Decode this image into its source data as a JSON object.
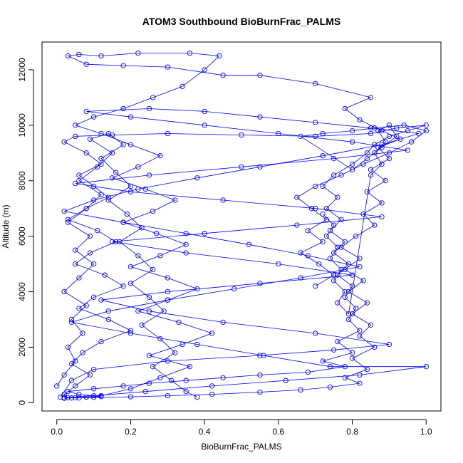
{
  "chart_data": {
    "type": "scatter",
    "title": "ATOM3 Southbound BioBurnFrac_PALMS",
    "xlabel": "BioBurnFrac_PALMS",
    "ylabel": "Altitude (m)",
    "xlim": [
      -0.04,
      1.04
    ],
    "ylim": [
      -300,
      13000
    ],
    "x_ticks": [
      "0.0",
      "0.2",
      "0.4",
      "0.6",
      "0.8",
      "1.0"
    ],
    "x_tick_values": [
      0.0,
      0.2,
      0.4,
      0.6,
      0.8,
      1.0
    ],
    "y_ticks": [
      "0",
      "2000",
      "4000",
      "6000",
      "8000",
      "10000",
      "12000"
    ],
    "y_tick_values": [
      0,
      2000,
      4000,
      6000,
      8000,
      10000,
      12000
    ],
    "grid": false,
    "marker": "open-circle",
    "connected": true,
    "colors": {
      "series": "#0000ff",
      "axes": "#000000"
    },
    "series": [
      {
        "points": [
          [
            0.02,
            160
          ],
          [
            0.05,
            180
          ],
          [
            0.08,
            200
          ],
          [
            0.12,
            220
          ],
          [
            0.06,
            300
          ],
          [
            0.03,
            400
          ],
          [
            0.1,
            500
          ],
          [
            0.18,
            600
          ],
          [
            0.25,
            700
          ],
          [
            0.35,
            800
          ],
          [
            0.45,
            900
          ],
          [
            0.55,
            1000
          ],
          [
            0.68,
            1100
          ],
          [
            0.78,
            1300
          ],
          [
            0.72,
            1500
          ],
          [
            0.8,
            1800
          ],
          [
            0.76,
            2200
          ],
          [
            0.82,
            2600
          ],
          [
            0.79,
            3000
          ],
          [
            0.81,
            3400
          ],
          [
            0.78,
            3800
          ],
          [
            0.8,
            4200
          ],
          [
            0.76,
            4600
          ],
          [
            0.79,
            5000
          ],
          [
            0.75,
            5400
          ],
          [
            0.78,
            5800
          ],
          [
            0.74,
            6200
          ],
          [
            0.77,
            6600
          ],
          [
            0.73,
            7000
          ],
          [
            0.76,
            7400
          ],
          [
            0.72,
            7800
          ],
          [
            0.75,
            8200
          ],
          [
            0.8,
            8600
          ],
          [
            0.84,
            9000
          ],
          [
            0.86,
            9300
          ],
          [
            0.9,
            9600
          ],
          [
            0.95,
            9800
          ],
          [
            1.0,
            10000
          ],
          [
            0.92,
            9900
          ],
          [
            0.85,
            9700
          ],
          [
            0.7,
            9600
          ],
          [
            0.5,
            9650
          ],
          [
            0.3,
            9700
          ],
          [
            0.15,
            9650
          ],
          [
            0.05,
            9600
          ],
          [
            0.02,
            9400
          ],
          [
            0.08,
            9000
          ],
          [
            0.12,
            8600
          ],
          [
            0.06,
            8200
          ],
          [
            0.1,
            7800
          ],
          [
            0.14,
            7400
          ],
          [
            0.08,
            7000
          ],
          [
            0.03,
            6600
          ],
          [
            0.11,
            6200
          ],
          [
            0.16,
            5800
          ],
          [
            0.09,
            5400
          ],
          [
            0.05,
            5000
          ],
          [
            0.13,
            4600
          ],
          [
            0.18,
            4200
          ],
          [
            0.1,
            3800
          ],
          [
            0.06,
            3400
          ],
          [
            0.14,
            3000
          ],
          [
            0.2,
            2600
          ],
          [
            0.12,
            2200
          ],
          [
            0.07,
            1800
          ],
          [
            0.04,
            1400
          ],
          [
            0.09,
            1000
          ],
          [
            0.05,
            600
          ],
          [
            0.02,
            300
          ],
          [
            0.03,
            180
          ]
        ]
      },
      {
        "points": [
          [
            0.04,
            170
          ],
          [
            0.1,
            190
          ],
          [
            0.2,
            210
          ],
          [
            0.3,
            250
          ],
          [
            0.42,
            300
          ],
          [
            0.55,
            380
          ],
          [
            0.66,
            460
          ],
          [
            0.74,
            560
          ],
          [
            0.82,
            700
          ],
          [
            0.78,
            900
          ],
          [
            0.84,
            1200
          ],
          [
            0.8,
            1600
          ],
          [
            0.86,
            2000
          ],
          [
            0.82,
            2400
          ],
          [
            0.85,
            2800
          ],
          [
            0.8,
            3200
          ],
          [
            0.84,
            3600
          ],
          [
            0.79,
            4000
          ],
          [
            0.83,
            4400
          ],
          [
            0.78,
            4800
          ],
          [
            0.82,
            5200
          ],
          [
            0.77,
            5600
          ],
          [
            0.81,
            6000
          ],
          [
            0.86,
            6400
          ],
          [
            0.83,
            6800
          ],
          [
            0.88,
            7200
          ],
          [
            0.84,
            7600
          ],
          [
            0.89,
            8000
          ],
          [
            0.85,
            8400
          ],
          [
            0.9,
            8800
          ],
          [
            0.87,
            9200
          ],
          [
            0.93,
            9500
          ],
          [
            0.88,
            9800
          ],
          [
            0.82,
            10200
          ],
          [
            0.78,
            10600
          ],
          [
            0.85,
            11000
          ],
          [
            0.7,
            11500
          ],
          [
            0.55,
            11800
          ],
          [
            0.45,
            11800
          ],
          [
            0.3,
            12100
          ],
          [
            0.18,
            12150
          ],
          [
            0.08,
            12200
          ],
          [
            0.03,
            12500
          ],
          [
            0.06,
            12550
          ],
          [
            0.12,
            12500
          ],
          [
            0.22,
            12600
          ],
          [
            0.36,
            12600
          ],
          [
            0.44,
            12500
          ],
          [
            0.4,
            12000
          ],
          [
            0.34,
            11400
          ],
          [
            0.26,
            11000
          ],
          [
            0.18,
            10600
          ],
          [
            0.1,
            10300
          ],
          [
            0.05,
            10000
          ],
          [
            0.12,
            9700
          ],
          [
            0.2,
            9300
          ],
          [
            0.28,
            8900
          ],
          [
            0.22,
            8500
          ],
          [
            0.15,
            8100
          ],
          [
            0.24,
            7700
          ],
          [
            0.32,
            7300
          ],
          [
            0.26,
            6900
          ],
          [
            0.18,
            6500
          ],
          [
            0.27,
            6100
          ],
          [
            0.35,
            5700
          ],
          [
            0.28,
            5300
          ],
          [
            0.2,
            4900
          ],
          [
            0.3,
            4500
          ],
          [
            0.38,
            4100
          ],
          [
            0.3,
            3700
          ],
          [
            0.22,
            3300
          ],
          [
            0.33,
            2900
          ],
          [
            0.42,
            2500
          ],
          [
            0.34,
            2100
          ],
          [
            0.25,
            1700
          ],
          [
            0.36,
            1300
          ],
          [
            0.28,
            900
          ],
          [
            0.2,
            500
          ],
          [
            0.12,
            250
          ],
          [
            0.06,
            170
          ]
        ]
      },
      {
        "points": [
          [
            0.01,
            200
          ],
          [
            0.04,
            800
          ],
          [
            0.1,
            1200
          ],
          [
            0.3,
            1500
          ],
          [
            0.55,
            1700
          ],
          [
            0.75,
            1900
          ],
          [
            0.9,
            2100
          ],
          [
            0.7,
            2500
          ],
          [
            0.45,
            2900
          ],
          [
            0.25,
            3300
          ],
          [
            0.12,
            3700
          ],
          [
            0.3,
            4000
          ],
          [
            0.55,
            4300
          ],
          [
            0.8,
            4600
          ],
          [
            0.6,
            5000
          ],
          [
            0.35,
            5400
          ],
          [
            0.15,
            5800
          ],
          [
            0.4,
            6100
          ],
          [
            0.65,
            6400
          ],
          [
            0.88,
            6700
          ],
          [
            0.7,
            7000
          ],
          [
            0.45,
            7300
          ],
          [
            0.2,
            7600
          ],
          [
            0.05,
            7900
          ],
          [
            0.25,
            8200
          ],
          [
            0.5,
            8500
          ],
          [
            0.75,
            8800
          ],
          [
            0.95,
            9100
          ],
          [
            0.8,
            9400
          ],
          [
            0.6,
            9700
          ],
          [
            0.4,
            10000
          ],
          [
            0.2,
            10300
          ],
          [
            0.08,
            10500
          ],
          [
            0.25,
            10600
          ],
          [
            0.4,
            10500
          ],
          [
            0.55,
            10300
          ],
          [
            0.7,
            10100
          ],
          [
            0.85,
            9900
          ],
          [
            0.98,
            9700
          ],
          [
            0.88,
            9300
          ],
          [
            0.72,
            8900
          ],
          [
            0.55,
            8500
          ],
          [
            0.38,
            8100
          ],
          [
            0.22,
            7700
          ],
          [
            0.1,
            7300
          ],
          [
            0.02,
            6900
          ],
          [
            0.18,
            6500
          ],
          [
            0.35,
            6100
          ],
          [
            0.52,
            5700
          ],
          [
            0.68,
            5300
          ],
          [
            0.82,
            4900
          ],
          [
            0.66,
            4500
          ],
          [
            0.48,
            4100
          ],
          [
            0.3,
            3700
          ],
          [
            0.14,
            3300
          ],
          [
            0.04,
            2900
          ],
          [
            0.2,
            2500
          ],
          [
            0.38,
            2100
          ],
          [
            0.56,
            1700
          ],
          [
            0.74,
            1300
          ],
          [
            1.0,
            1300
          ],
          [
            0.82,
            1000
          ],
          [
            0.62,
            800
          ],
          [
            0.42,
            600
          ],
          [
            0.24,
            400
          ],
          [
            0.1,
            250
          ],
          [
            0.02,
            180
          ]
        ]
      },
      {
        "points": [
          [
            0.0,
            600
          ],
          [
            0.02,
            1000
          ],
          [
            0.05,
            1500
          ],
          [
            0.03,
            2000
          ],
          [
            0.07,
            2500
          ],
          [
            0.04,
            3000
          ],
          [
            0.08,
            3500
          ],
          [
            0.02,
            4000
          ],
          [
            0.06,
            4500
          ],
          [
            0.1,
            5000
          ],
          [
            0.05,
            5500
          ],
          [
            0.09,
            6000
          ],
          [
            0.03,
            6500
          ],
          [
            0.08,
            7000
          ],
          [
            0.12,
            7500
          ],
          [
            0.06,
            8000
          ],
          [
            0.11,
            8500
          ],
          [
            0.15,
            9000
          ],
          [
            0.09,
            9500
          ],
          [
            0.14,
            9700
          ],
          [
            0.18,
            9300
          ],
          [
            0.12,
            8800
          ],
          [
            0.16,
            8300
          ],
          [
            0.2,
            7800
          ],
          [
            0.14,
            7300
          ],
          [
            0.19,
            6800
          ],
          [
            0.23,
            6300
          ],
          [
            0.17,
            5800
          ],
          [
            0.22,
            5300
          ],
          [
            0.26,
            4800
          ],
          [
            0.2,
            4300
          ],
          [
            0.25,
            3800
          ],
          [
            0.29,
            3300
          ],
          [
            0.23,
            2800
          ],
          [
            0.28,
            2300
          ],
          [
            0.32,
            1800
          ],
          [
            0.26,
            1300
          ],
          [
            0.31,
            800
          ],
          [
            0.35,
            400
          ],
          [
            0.38,
            200
          ]
        ]
      },
      {
        "points": [
          [
            0.72,
            6800
          ],
          [
            0.75,
            6400
          ],
          [
            0.73,
            6000
          ],
          [
            0.76,
            5600
          ],
          [
            0.74,
            5200
          ],
          [
            0.77,
            4800
          ],
          [
            0.75,
            4400
          ],
          [
            0.78,
            4000
          ],
          [
            0.76,
            3600
          ],
          [
            0.79,
            3200
          ],
          [
            0.85,
            8200
          ],
          [
            0.88,
            8600
          ],
          [
            0.86,
            9000
          ],
          [
            0.89,
            9400
          ],
          [
            0.87,
            9800
          ],
          [
            0.9,
            10000
          ],
          [
            0.92,
            9600
          ],
          [
            0.88,
            9200
          ],
          [
            0.84,
            8800
          ],
          [
            0.8,
            8400
          ],
          [
            0.66,
            9600
          ],
          [
            0.72,
            9700
          ],
          [
            0.8,
            9800
          ],
          [
            0.86,
            9900
          ],
          [
            0.94,
            10000
          ],
          [
            1.0,
            9800
          ],
          [
            0.96,
            9400
          ],
          [
            0.9,
            9000
          ],
          [
            0.83,
            8600
          ],
          [
            0.77,
            8200
          ],
          [
            0.7,
            7800
          ],
          [
            0.65,
            7400
          ],
          [
            0.69,
            7000
          ],
          [
            0.73,
            6600
          ],
          [
            0.68,
            6200
          ],
          [
            0.72,
            5800
          ],
          [
            0.66,
            5400
          ],
          [
            0.71,
            5000
          ],
          [
            0.75,
            4600
          ],
          [
            0.7,
            4200
          ]
        ]
      }
    ]
  }
}
